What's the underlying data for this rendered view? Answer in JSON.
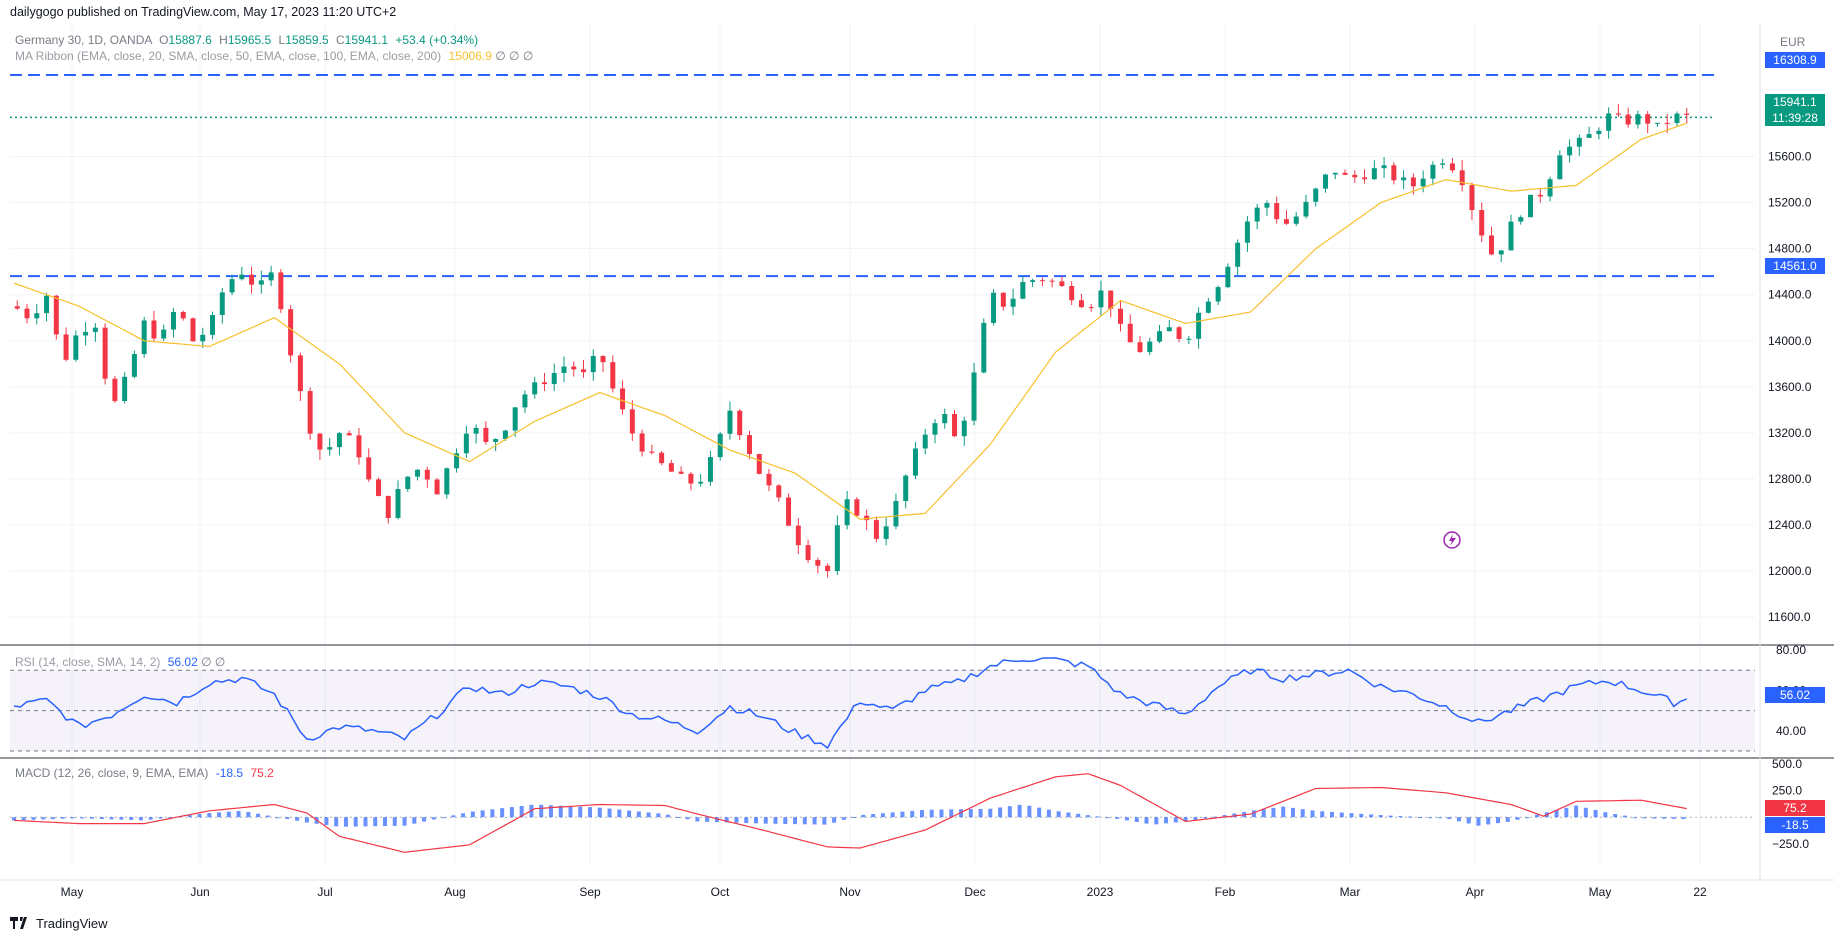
{
  "header": {
    "publisher": "dailygogo published on TradingView.com, May 17, 2023 11:20 UTC+2"
  },
  "legend": {
    "symbol": "Germany 30, 1D, OANDA",
    "o_label": "O",
    "o": "15887.6",
    "h_label": "H",
    "h": "15965.5",
    "l_label": "L",
    "l": "15859.5",
    "c_label": "C",
    "c": "15941.1",
    "change": "+53.4 (+0.34%)",
    "ribbon": "MA Ribbon (EMA, close, 20, SMA, close, 50, EMA, close, 100, EMA, close, 200)",
    "ribbon_value": "15006.9",
    "ribbon_na": "∅  ∅  ∅"
  },
  "rsi": {
    "label": "RSI (14, close, SMA, 14, 2)",
    "value": "56.02",
    "na": "∅  ∅"
  },
  "macd": {
    "label": "MACD (12, 26, close, 9, EMA, EMA)",
    "macd_value": "-18.5",
    "signal_value": "75.2"
  },
  "price_badges": {
    "resistance": "16308.9",
    "current_price": "15941.1",
    "countdown": "11:39:28",
    "support": "14561.0",
    "rsi": "56.02",
    "macd_signal": "75.2",
    "macd_hist": "-18.5"
  },
  "currency": "EUR",
  "footer": {
    "brand": "TradingView"
  },
  "colors": {
    "up": "#089981",
    "down": "#f23645",
    "ma20": "#f7c12d",
    "level": "#2962ff",
    "rsi": "#2962ff",
    "macd_signal": "#f23645"
  },
  "chart_data": [
    {
      "type": "candlestick",
      "title": "Germany 30, 1D, OANDA",
      "currency": "EUR",
      "y_ticks": [
        11600,
        12000,
        12400,
        12800,
        13200,
        13600,
        14000,
        14400,
        14800,
        15200,
        15600
      ],
      "ylim": [
        11400,
        16700
      ],
      "x_labels": [
        "May",
        "Jun",
        "Jul",
        "Aug",
        "Sep",
        "Oct",
        "Nov",
        "Dec",
        "2023",
        "Feb",
        "Mar",
        "Apr",
        "May",
        "22"
      ],
      "horizontal_levels": [
        16308.9,
        14561.0
      ],
      "last_price": 15941.1,
      "close_path": [
        [
          0,
          14300
        ],
        [
          5,
          14200
        ],
        [
          10,
          14400
        ],
        [
          15,
          13800
        ],
        [
          20,
          14100
        ],
        [
          25,
          14150
        ],
        [
          30,
          13400
        ],
        [
          35,
          13700
        ],
        [
          40,
          14150
        ],
        [
          45,
          14000
        ],
        [
          50,
          14300
        ],
        [
          55,
          14000
        ],
        [
          60,
          14100
        ],
        [
          65,
          14500
        ],
        [
          70,
          14600
        ],
        [
          75,
          14450
        ],
        [
          80,
          14600
        ],
        [
          85,
          13900
        ],
        [
          90,
          13300
        ],
        [
          95,
          13000
        ],
        [
          100,
          13200
        ],
        [
          105,
          13100
        ],
        [
          110,
          12700
        ],
        [
          115,
          12500
        ],
        [
          120,
          12800
        ],
        [
          125,
          12900
        ],
        [
          130,
          12700
        ],
        [
          135,
          13000
        ],
        [
          140,
          13300
        ],
        [
          145,
          13100
        ],
        [
          150,
          13200
        ],
        [
          155,
          13500
        ],
        [
          160,
          13600
        ],
        [
          165,
          13700
        ],
        [
          170,
          13800
        ],
        [
          175,
          13700
        ],
        [
          180,
          13900
        ],
        [
          185,
          13500
        ],
        [
          190,
          13200
        ],
        [
          195,
          13000
        ],
        [
          200,
          12900
        ],
        [
          205,
          12800
        ],
        [
          210,
          12750
        ],
        [
          215,
          13000
        ],
        [
          220,
          13400
        ],
        [
          225,
          13100
        ],
        [
          230,
          12800
        ],
        [
          235,
          12600
        ],
        [
          240,
          12300
        ],
        [
          245,
          12100
        ],
        [
          250,
          12000
        ],
        [
          255,
          12600
        ],
        [
          260,
          12500
        ],
        [
          265,
          12300
        ],
        [
          270,
          12500
        ],
        [
          275,
          12900
        ],
        [
          280,
          13200
        ],
        [
          285,
          13400
        ],
        [
          290,
          13100
        ],
        [
          295,
          13700
        ],
        [
          300,
          14400
        ],
        [
          305,
          14300
        ],
        [
          310,
          14500
        ],
        [
          315,
          14550
        ],
        [
          320,
          14500
        ],
        [
          325,
          14400
        ],
        [
          330,
          14300
        ],
        [
          335,
          14450
        ],
        [
          340,
          14100
        ],
        [
          345,
          13900
        ],
        [
          350,
          14000
        ],
        [
          355,
          14100
        ],
        [
          360,
          14000
        ],
        [
          365,
          14300
        ],
        [
          370,
          14500
        ],
        [
          375,
          14800
        ],
        [
          380,
          15100
        ],
        [
          385,
          15200
        ],
        [
          390,
          15000
        ],
        [
          395,
          15100
        ],
        [
          400,
          15300
        ],
        [
          405,
          15500
        ],
        [
          410,
          15400
        ],
        [
          415,
          15450
        ],
        [
          420,
          15500
        ],
        [
          425,
          15400
        ],
        [
          430,
          15350
        ],
        [
          435,
          15500
        ],
        [
          440,
          15600
        ],
        [
          445,
          15400
        ],
        [
          450,
          15000
        ],
        [
          455,
          14700
        ],
        [
          460,
          15000
        ],
        [
          465,
          15200
        ],
        [
          470,
          15300
        ],
        [
          475,
          15650
        ],
        [
          480,
          15700
        ],
        [
          485,
          15800
        ],
        [
          490,
          15950
        ],
        [
          495,
          15900
        ],
        [
          500,
          15950
        ],
        [
          505,
          15850
        ],
        [
          510,
          15950
        ],
        [
          515,
          15941
        ]
      ],
      "ma20_path": [
        [
          0,
          14500
        ],
        [
          20,
          14300
        ],
        [
          40,
          14000
        ],
        [
          60,
          13950
        ],
        [
          80,
          14200
        ],
        [
          100,
          13800
        ],
        [
          120,
          13200
        ],
        [
          140,
          12950
        ],
        [
          160,
          13300
        ],
        [
          180,
          13550
        ],
        [
          200,
          13350
        ],
        [
          220,
          13050
        ],
        [
          240,
          12850
        ],
        [
          260,
          12450
        ],
        [
          280,
          12500
        ],
        [
          300,
          13100
        ],
        [
          320,
          13900
        ],
        [
          340,
          14350
        ],
        [
          360,
          14150
        ],
        [
          380,
          14250
        ],
        [
          400,
          14800
        ],
        [
          420,
          15200
        ],
        [
          440,
          15400
        ],
        [
          460,
          15300
        ],
        [
          480,
          15350
        ],
        [
          500,
          15750
        ],
        [
          515,
          15900
        ]
      ]
    },
    {
      "type": "line",
      "title": "RSI (14, close, SMA, 14, 2)",
      "y_ticks": [
        40,
        60,
        80
      ],
      "ylim": [
        28,
        80
      ],
      "bands": [
        30,
        50,
        70
      ],
      "series": [
        {
          "name": "RSI",
          "values": [
            [
              0,
              52
            ],
            [
              10,
              55
            ],
            [
              20,
              42
            ],
            [
              30,
              48
            ],
            [
              40,
              58
            ],
            [
              50,
              54
            ],
            [
              60,
              64
            ],
            [
              70,
              66
            ],
            [
              80,
              58
            ],
            [
              90,
              36
            ],
            [
              100,
              42
            ],
            [
              110,
              40
            ],
            [
              120,
              36
            ],
            [
              130,
              48
            ],
            [
              140,
              62
            ],
            [
              150,
              58
            ],
            [
              160,
              64
            ],
            [
              170,
              62
            ],
            [
              180,
              57
            ],
            [
              190,
              48
            ],
            [
              200,
              45
            ],
            [
              210,
              40
            ],
            [
              220,
              52
            ],
            [
              230,
              47
            ],
            [
              240,
              39
            ],
            [
              250,
              33
            ],
            [
              260,
              55
            ],
            [
              270,
              50
            ],
            [
              280,
              60
            ],
            [
              290,
              64
            ],
            [
              300,
              72
            ],
            [
              310,
              76
            ],
            [
              320,
              75
            ],
            [
              330,
              72
            ],
            [
              340,
              58
            ],
            [
              350,
              53
            ],
            [
              360,
              48
            ],
            [
              370,
              62
            ],
            [
              380,
              70
            ],
            [
              390,
              66
            ],
            [
              400,
              68
            ],
            [
              410,
              70
            ],
            [
              420,
              62
            ],
            [
              430,
              58
            ],
            [
              440,
              52
            ],
            [
              450,
              44
            ],
            [
              460,
              50
            ],
            [
              470,
              56
            ],
            [
              480,
              62
            ],
            [
              490,
              65
            ],
            [
              500,
              60
            ],
            [
              510,
              54
            ],
            [
              515,
              56.02
            ]
          ]
        }
      ]
    },
    {
      "type": "bar+line",
      "title": "MACD (12, 26, close, 9, EMA, EMA)",
      "y_ticks": [
        500,
        250,
        -250
      ],
      "ylim": [
        -450,
        520
      ],
      "series": [
        {
          "name": "MACD",
          "values": [
            [
              0,
              -30
            ],
            [
              20,
              -60
            ],
            [
              40,
              -60
            ],
            [
              60,
              60
            ],
            [
              80,
              120
            ],
            [
              90,
              40
            ],
            [
              100,
              -180
            ],
            [
              120,
              -330
            ],
            [
              140,
              -260
            ],
            [
              160,
              80
            ],
            [
              180,
              120
            ],
            [
              200,
              110
            ],
            [
              210,
              30
            ],
            [
              230,
              -120
            ],
            [
              250,
              -280
            ],
            [
              260,
              -290
            ],
            [
              280,
              -120
            ],
            [
              300,
              180
            ],
            [
              320,
              380
            ],
            [
              330,
              410
            ],
            [
              340,
              300
            ],
            [
              360,
              -40
            ],
            [
              380,
              30
            ],
            [
              400,
              270
            ],
            [
              420,
              280
            ],
            [
              440,
              230
            ],
            [
              460,
              120
            ],
            [
              470,
              10
            ],
            [
              480,
              150
            ],
            [
              500,
              160
            ],
            [
              515,
              75.2
            ]
          ]
        },
        {
          "name": "Histogram",
          "values": [
            [
              0,
              -30
            ],
            [
              20,
              -10
            ],
            [
              40,
              -30
            ],
            [
              60,
              40
            ],
            [
              70,
              60
            ],
            [
              90,
              -50
            ],
            [
              100,
              -90
            ],
            [
              120,
              -80
            ],
            [
              140,
              50
            ],
            [
              160,
              120
            ],
            [
              180,
              90
            ],
            [
              200,
              30
            ],
            [
              210,
              -40
            ],
            [
              230,
              -60
            ],
            [
              250,
              -70
            ],
            [
              260,
              20
            ],
            [
              280,
              70
            ],
            [
              300,
              80
            ],
            [
              310,
              120
            ],
            [
              320,
              60
            ],
            [
              340,
              -20
            ],
            [
              350,
              -70
            ],
            [
              360,
              -40
            ],
            [
              380,
              60
            ],
            [
              390,
              100
            ],
            [
              400,
              60
            ],
            [
              420,
              20
            ],
            [
              440,
              -10
            ],
            [
              450,
              -80
            ],
            [
              460,
              -40
            ],
            [
              470,
              40
            ],
            [
              480,
              110
            ],
            [
              490,
              40
            ],
            [
              500,
              -10
            ],
            [
              515,
              -18.5
            ]
          ]
        }
      ]
    }
  ]
}
